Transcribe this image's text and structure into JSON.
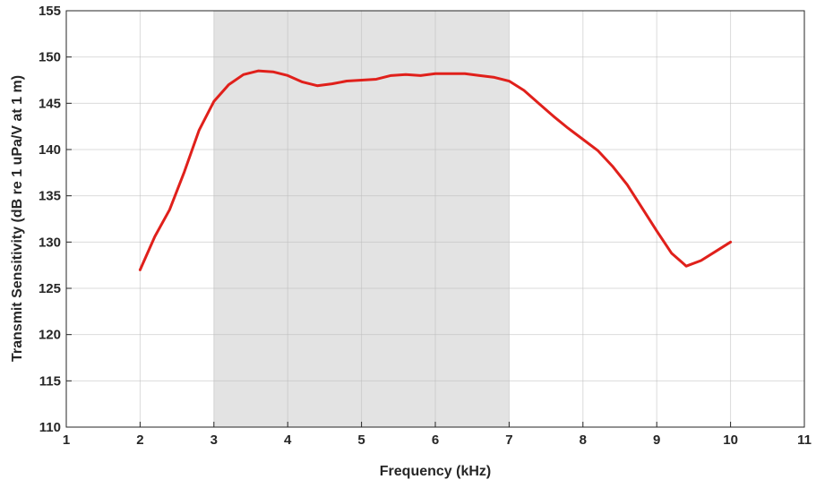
{
  "chart_data": {
    "type": "line",
    "title": "",
    "xlabel": "Frequency (kHz)",
    "ylabel": "Transmit Sensitivity (dB re 1 uPa/V at 1 m)",
    "xlim": [
      1,
      11
    ],
    "ylim": [
      110,
      155
    ],
    "xticks": [
      "1",
      "2",
      "3",
      "4",
      "5",
      "6",
      "7",
      "8",
      "9",
      "10",
      "11"
    ],
    "yticks": [
      "110",
      "115",
      "120",
      "125",
      "130",
      "135",
      "140",
      "145",
      "150",
      "155"
    ],
    "grid": true,
    "shaded_band": {
      "x_start": 3,
      "x_end": 7,
      "color": "#e3e3e3"
    },
    "series": [
      {
        "color": "#e0201b",
        "x": [
          2.0,
          2.2,
          2.4,
          2.6,
          2.8,
          3.0,
          3.2,
          3.4,
          3.6,
          3.8,
          4.0,
          4.2,
          4.4,
          4.6,
          4.8,
          5.0,
          5.2,
          5.4,
          5.6,
          5.8,
          6.0,
          6.2,
          6.4,
          6.6,
          6.8,
          7.0,
          7.2,
          7.4,
          7.6,
          7.8,
          8.0,
          8.2,
          8.4,
          8.6,
          8.8,
          9.0,
          9.2,
          9.4,
          9.6,
          9.8,
          10.0
        ],
        "y": [
          127.0,
          130.6,
          133.5,
          137.6,
          142.1,
          145.2,
          147.0,
          148.1,
          148.5,
          148.4,
          148.0,
          147.3,
          146.9,
          147.1,
          147.4,
          147.5,
          147.6,
          148.0,
          148.1,
          148.0,
          148.2,
          148.2,
          148.2,
          148.0,
          147.8,
          147.4,
          146.4,
          145.0,
          143.6,
          142.3,
          141.1,
          139.9,
          138.2,
          136.2,
          133.7,
          131.2,
          128.8,
          127.4,
          128.0,
          129.0,
          130.0
        ]
      }
    ]
  }
}
